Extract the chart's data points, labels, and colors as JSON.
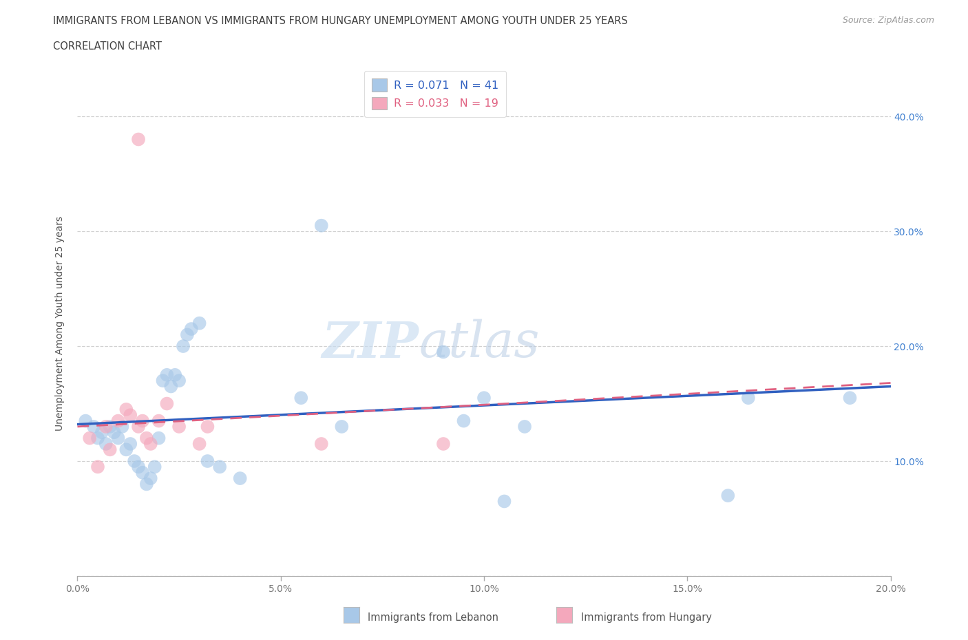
{
  "title_line1": "IMMIGRANTS FROM LEBANON VS IMMIGRANTS FROM HUNGARY UNEMPLOYMENT AMONG YOUTH UNDER 25 YEARS",
  "title_line2": "CORRELATION CHART",
  "source": "Source: ZipAtlas.com",
  "ylabel": "Unemployment Among Youth under 25 years",
  "xlabel": "",
  "xlim": [
    0.0,
    0.2
  ],
  "ylim": [
    0.0,
    0.44
  ],
  "xticks": [
    0.0,
    0.05,
    0.1,
    0.15,
    0.2
  ],
  "yticks": [
    0.0,
    0.1,
    0.2,
    0.3,
    0.4
  ],
  "xtick_labels": [
    "0.0%",
    "5.0%",
    "10.0%",
    "15.0%",
    "20.0%"
  ],
  "ytick_labels_left": [
    "",
    "",
    "",
    "",
    ""
  ],
  "ytick_labels_right": [
    "",
    "10.0%",
    "20.0%",
    "30.0%",
    "40.0%"
  ],
  "legend_R1": "R = 0.071",
  "legend_N1": "N = 41",
  "legend_R2": "R = 0.033",
  "legend_N2": "N = 19",
  "color_lebanon": "#a8c8e8",
  "color_hungary": "#f4a8bc",
  "color_lebanon_line": "#3060c0",
  "color_hungary_line": "#e06080",
  "watermark_zip": "ZIP",
  "watermark_atlas": "atlas",
  "background_color": "#ffffff",
  "grid_color": "#cccccc",
  "lebanon_x": [
    0.002,
    0.004,
    0.005,
    0.006,
    0.007,
    0.008,
    0.009,
    0.01,
    0.011,
    0.012,
    0.013,
    0.014,
    0.015,
    0.016,
    0.017,
    0.018,
    0.019,
    0.02,
    0.021,
    0.022,
    0.023,
    0.024,
    0.025,
    0.026,
    0.027,
    0.028,
    0.03,
    0.032,
    0.035,
    0.04,
    0.055,
    0.06,
    0.065,
    0.09,
    0.095,
    0.1,
    0.105,
    0.11,
    0.16,
    0.165,
    0.19
  ],
  "lebanon_y": [
    0.135,
    0.13,
    0.12,
    0.125,
    0.115,
    0.13,
    0.125,
    0.12,
    0.13,
    0.11,
    0.115,
    0.1,
    0.095,
    0.09,
    0.08,
    0.085,
    0.095,
    0.12,
    0.17,
    0.175,
    0.165,
    0.175,
    0.17,
    0.2,
    0.21,
    0.215,
    0.22,
    0.1,
    0.095,
    0.085,
    0.155,
    0.305,
    0.13,
    0.195,
    0.135,
    0.155,
    0.065,
    0.13,
    0.07,
    0.155,
    0.155
  ],
  "hungary_x": [
    0.003,
    0.005,
    0.007,
    0.008,
    0.01,
    0.012,
    0.013,
    0.015,
    0.016,
    0.017,
    0.018,
    0.02,
    0.022,
    0.025,
    0.03,
    0.032,
    0.06,
    0.09,
    0.015
  ],
  "hungary_y": [
    0.12,
    0.095,
    0.13,
    0.11,
    0.135,
    0.145,
    0.14,
    0.13,
    0.135,
    0.12,
    0.115,
    0.135,
    0.15,
    0.13,
    0.115,
    0.13,
    0.115,
    0.115,
    0.38
  ],
  "trendline_leb_x0": 0.0,
  "trendline_leb_y0": 0.132,
  "trendline_leb_x1": 0.2,
  "trendline_leb_y1": 0.165,
  "trendline_hun_x0": 0.0,
  "trendline_hun_y0": 0.13,
  "trendline_hun_x1": 0.2,
  "trendline_hun_y1": 0.168
}
